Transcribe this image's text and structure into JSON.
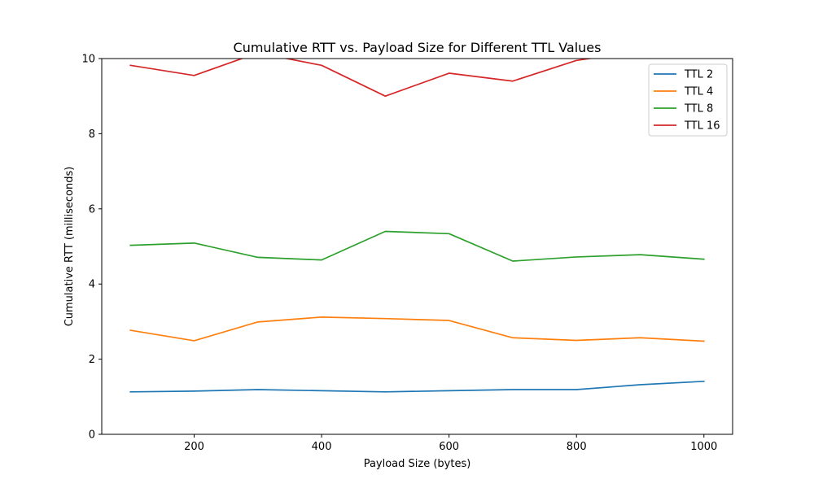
{
  "chart_data": {
    "type": "line",
    "title": "Cumulative RTT vs. Payload Size for Different TTL Values",
    "xlabel": "Payload Size (bytes)",
    "ylabel": "Cumulative RTT (milliseconds)",
    "x": [
      100,
      200,
      300,
      400,
      500,
      600,
      700,
      800,
      900,
      1000
    ],
    "xlim": [
      55,
      1045
    ],
    "ylim": [
      0,
      10
    ],
    "xticks": [
      200,
      400,
      600,
      800,
      1000
    ],
    "yticks": [
      0,
      2,
      4,
      6,
      8,
      10
    ],
    "xtick_labels": [
      "200",
      "400",
      "600",
      "800",
      "1000"
    ],
    "ytick_labels": [
      "0",
      "2",
      "4",
      "6",
      "8",
      "10"
    ],
    "grid": false,
    "legend_position": "top-right",
    "series": [
      {
        "name": "TTL 2",
        "color": "#1f77b4",
        "values": [
          1.13,
          1.15,
          1.19,
          1.16,
          1.13,
          1.16,
          1.19,
          1.19,
          1.32,
          1.41
        ]
      },
      {
        "name": "TTL 4",
        "color": "#ff7f0e",
        "values": [
          2.77,
          2.49,
          2.99,
          3.12,
          3.08,
          3.03,
          2.57,
          2.5,
          2.57,
          2.48
        ]
      },
      {
        "name": "TTL 8",
        "color": "#2ca02c",
        "values": [
          5.03,
          5.09,
          4.71,
          4.64,
          5.4,
          5.34,
          4.61,
          4.72,
          4.78,
          4.66
        ]
      },
      {
        "name": "TTL 16",
        "color": "#d62728",
        "values": [
          9.82,
          9.55,
          10.15,
          9.82,
          9.0,
          9.61,
          9.4,
          9.95,
          10.2,
          10.3
        ]
      }
    ]
  }
}
